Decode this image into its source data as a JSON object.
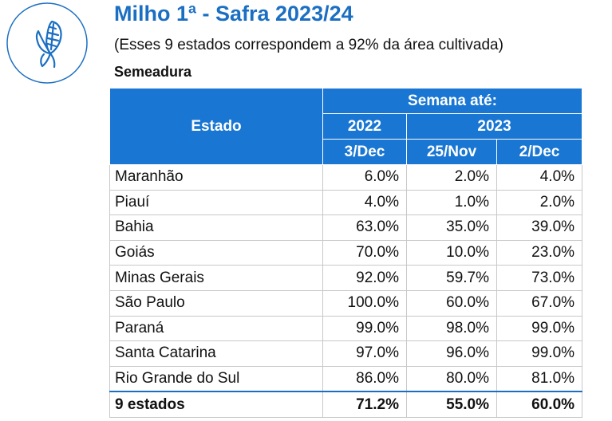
{
  "header": {
    "title": "Milho 1ª - Safra 2023/24",
    "subtitle": "(Esses 9 estados correspondem a 92% da área cultivada)",
    "section": "Semeadura",
    "icon": "corn-icon",
    "accent_color": "#1b6fc2",
    "header_bg": "#1976d2"
  },
  "table": {
    "estado_header": "Estado",
    "semana_header": "Semana até:",
    "year_2022": "2022",
    "year_2023": "2023",
    "col_dates": [
      "3/Dec",
      "25/Nov",
      "2/Dec"
    ],
    "rows": [
      {
        "state": "Maranhão",
        "values": [
          "6.0%",
          "2.0%",
          "4.0%"
        ]
      },
      {
        "state": "Piauí",
        "values": [
          "4.0%",
          "1.0%",
          "2.0%"
        ]
      },
      {
        "state": "Bahia",
        "values": [
          "63.0%",
          "35.0%",
          "39.0%"
        ]
      },
      {
        "state": "Goiás",
        "values": [
          "70.0%",
          "10.0%",
          "23.0%"
        ]
      },
      {
        "state": "Minas Gerais",
        "values": [
          "92.0%",
          "59.7%",
          "73.0%"
        ]
      },
      {
        "state": "São Paulo",
        "values": [
          "100.0%",
          "60.0%",
          "67.0%"
        ]
      },
      {
        "state": "Paraná",
        "values": [
          "99.0%",
          "98.0%",
          "99.0%"
        ]
      },
      {
        "state": "Santa Catarina",
        "values": [
          "97.0%",
          "96.0%",
          "99.0%"
        ]
      },
      {
        "state": "Rio Grande do Sul",
        "values": [
          "86.0%",
          "80.0%",
          "81.0%"
        ]
      }
    ],
    "total": {
      "state": "9 estados",
      "values": [
        "71.2%",
        "55.0%",
        "60.0%"
      ]
    }
  }
}
